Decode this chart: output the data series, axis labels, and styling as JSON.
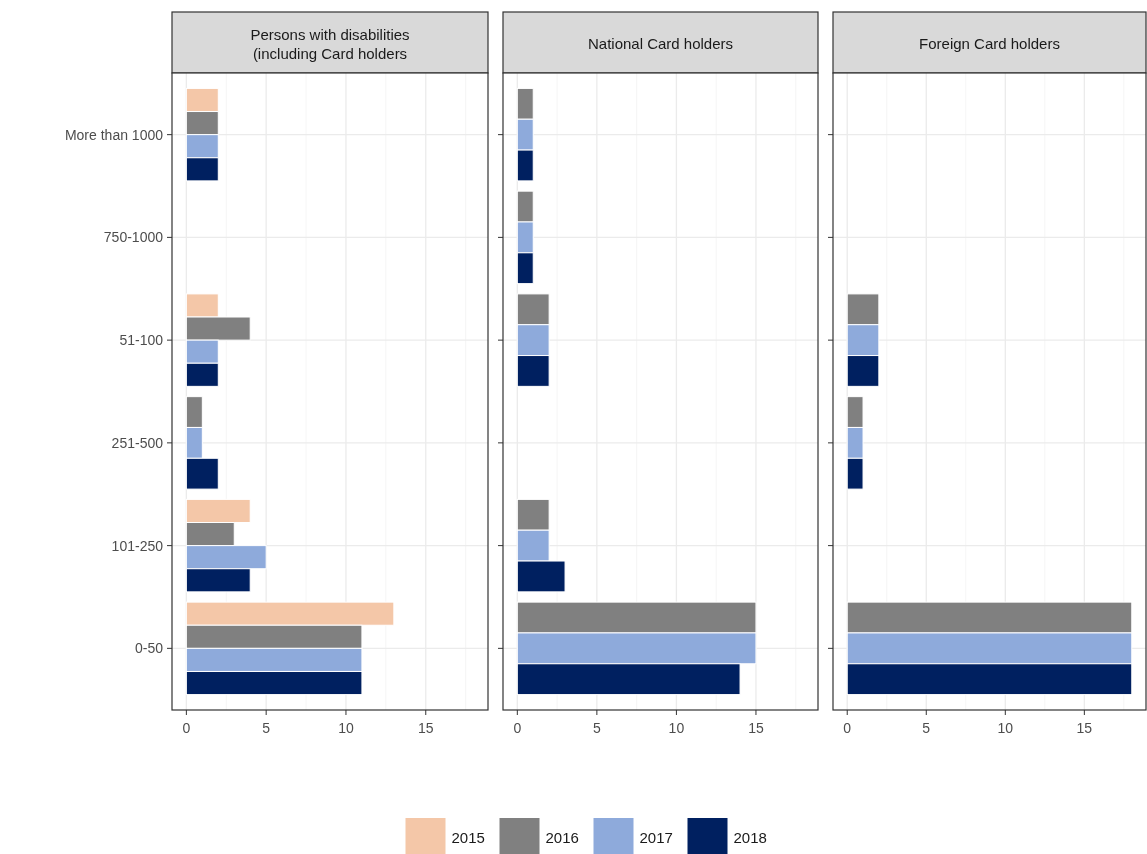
{
  "chart_data": [
    {
      "type": "bar",
      "orientation": "horizontal",
      "title": "Persons with disabilities\n(including Card holders",
      "categories": [
        "More than 1000",
        "750-1000",
        "51-100",
        "251-500",
        "101-250",
        "0-50"
      ],
      "xlim": [
        -0.9,
        18.9
      ],
      "xticks": [
        0,
        5,
        10,
        15
      ],
      "grid": true,
      "legend": "bottom",
      "series": [
        {
          "name": "2015",
          "color": "#f4c7a8",
          "values": [
            2,
            null,
            2,
            null,
            4,
            13
          ]
        },
        {
          "name": "2016",
          "color": "#808080",
          "values": [
            2,
            null,
            4,
            1,
            3,
            11
          ]
        },
        {
          "name": "2017",
          "color": "#8eaadb",
          "values": [
            2,
            null,
            2,
            1,
            5,
            11
          ]
        },
        {
          "name": "2018",
          "color": "#002060",
          "values": [
            2,
            null,
            2,
            2,
            4,
            11
          ]
        }
      ]
    },
    {
      "type": "bar",
      "orientation": "horizontal",
      "title": "National Card holders",
      "categories": [
        null,
        null,
        null,
        null,
        null,
        null
      ],
      "xlim": [
        -0.9,
        18.9
      ],
      "xticks": [
        0,
        5,
        10,
        15
      ],
      "grid": true,
      "tick_labels": "x",
      "series": [
        {
          "color": "#808080",
          "values": [
            1,
            1,
            2,
            null,
            2,
            15
          ]
        },
        {
          "color": "#8eaadb",
          "values": [
            1,
            1,
            2,
            null,
            2,
            15
          ]
        },
        {
          "color": "#002060",
          "values": [
            1,
            1,
            2,
            null,
            3,
            14
          ]
        }
      ]
    },
    {
      "type": "bar",
      "orientation": "horizontal",
      "title": "Foreign Card holders",
      "categories": [
        null,
        null,
        null,
        null,
        null,
        null
      ],
      "xlim": [
        -0.9,
        18.9
      ],
      "xticks": [
        0,
        5,
        10,
        15
      ],
      "grid": true,
      "tick_labels": "x",
      "series": [
        {
          "color": "#808080",
          "values": [
            null,
            null,
            2,
            1,
            null,
            18
          ]
        },
        {
          "color": "#8eaadb",
          "values": [
            null,
            null,
            2,
            1,
            null,
            18
          ]
        },
        {
          "color": "#002060",
          "values": [
            null,
            null,
            2,
            1,
            null,
            18
          ]
        }
      ]
    }
  ]
}
